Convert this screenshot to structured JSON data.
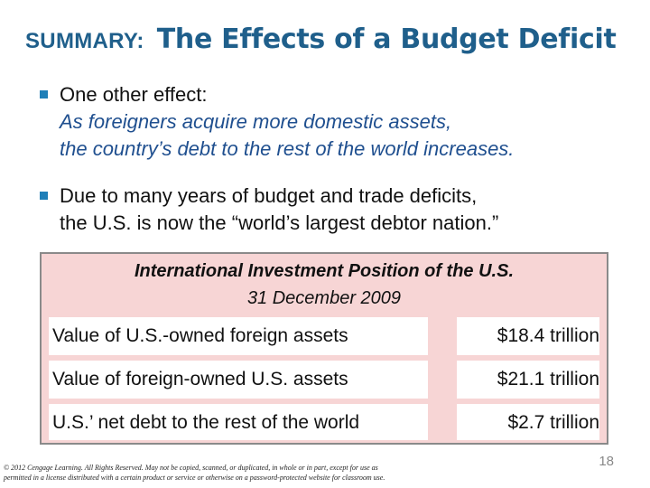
{
  "title": {
    "prefix": "SUMMARY:",
    "main": "The Effects of a Budget Deficit"
  },
  "bullets": [
    {
      "lead": "One other effect:",
      "emphasis_line1": "As foreigners acquire more domestic assets,",
      "emphasis_line2": "the country’s debt to the rest of the world increases."
    },
    {
      "line1": "Due to many years of budget and trade deficits,",
      "line2": "the U.S. is now the “world’s largest debtor nation.”"
    }
  ],
  "table": {
    "title": "International Investment Position of the U.S.",
    "subtitle": "31 December 2009",
    "rows": [
      {
        "label": "Value of U.S.-owned foreign assets",
        "value": "$18.4 trillion"
      },
      {
        "label": "Value of foreign-owned U.S. assets",
        "value": "$21.1 trillion"
      },
      {
        "label": "U.S.’ net debt to the rest of the world",
        "value": "$2.7 trillion"
      }
    ]
  },
  "footer": {
    "copyright": "© 2012 Cengage Learning. All Rights Reserved. May not be copied, scanned, or duplicated, in whole or in part, except for use as permitted in a license distributed with a certain product or service or otherwise on a password-protected website for classroom use.",
    "page_number": "18"
  },
  "colors": {
    "title": "#1f5f8b",
    "bullet_marker": "#1f7fb8",
    "emphasis": "#1f4f8f",
    "table_background": "#f7d5d5"
  }
}
